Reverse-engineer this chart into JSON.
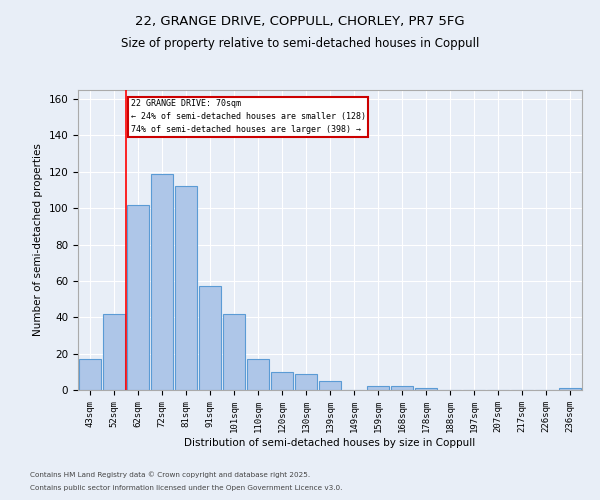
{
  "title1": "22, GRANGE DRIVE, COPPULL, CHORLEY, PR7 5FG",
  "title2": "Size of property relative to semi-detached houses in Coppull",
  "xlabel": "Distribution of semi-detached houses by size in Coppull",
  "ylabel": "Number of semi-detached properties",
  "categories": [
    "43sqm",
    "52sqm",
    "62sqm",
    "72sqm",
    "81sqm",
    "91sqm",
    "101sqm",
    "110sqm",
    "120sqm",
    "130sqm",
    "139sqm",
    "149sqm",
    "159sqm",
    "168sqm",
    "178sqm",
    "188sqm",
    "197sqm",
    "207sqm",
    "217sqm",
    "226sqm",
    "236sqm"
  ],
  "values": [
    17,
    42,
    102,
    119,
    112,
    57,
    42,
    17,
    10,
    9,
    5,
    0,
    2,
    2,
    1,
    0,
    0,
    0,
    0,
    0,
    1
  ],
  "bar_color": "#aec6e8",
  "bar_edge_color": "#5b9bd5",
  "background_color": "#e8eef7",
  "grid_color": "#ffffff",
  "ref_line_label": "22 GRANGE DRIVE: 70sqm",
  "annotation_smaller": "← 24% of semi-detached houses are smaller (128)",
  "annotation_larger": "74% of semi-detached houses are larger (398) →",
  "box_color": "#cc0000",
  "ylim": [
    0,
    165
  ],
  "yticks": [
    0,
    20,
    40,
    60,
    80,
    100,
    120,
    140,
    160
  ],
  "footnote1": "Contains HM Land Registry data © Crown copyright and database right 2025.",
  "footnote2": "Contains public sector information licensed under the Open Government Licence v3.0."
}
